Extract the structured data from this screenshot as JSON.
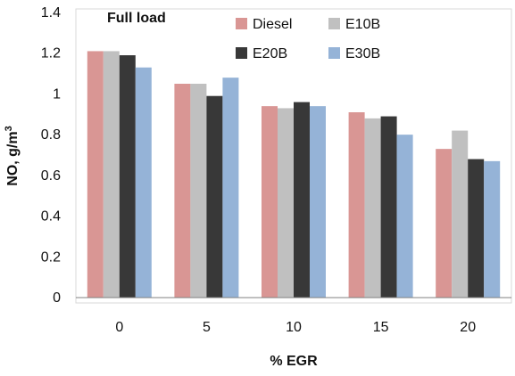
{
  "chart_data": {
    "type": "bar",
    "annotation": "Full load",
    "xlabel": "% EGR",
    "ylabel": "NO, g/m",
    "ylabel_superscript": "3",
    "categories": [
      "0",
      "5",
      "10",
      "15",
      "20"
    ],
    "ylim": [
      0,
      1.4
    ],
    "yticks": [
      "0",
      "0.2",
      "0.4",
      "0.6",
      "0.8",
      "1",
      "1.2",
      "1.4"
    ],
    "grid": false,
    "legend_position": "top-right",
    "series": [
      {
        "name": "Diesel",
        "color": "#d99694",
        "values": [
          1.21,
          1.05,
          0.94,
          0.91,
          0.73
        ]
      },
      {
        "name": "E10B",
        "color": "#c0c0c0",
        "values": [
          1.21,
          1.05,
          0.93,
          0.88,
          0.82
        ]
      },
      {
        "name": "E20B",
        "color": "#383838",
        "values": [
          1.19,
          0.99,
          0.96,
          0.89,
          0.68
        ]
      },
      {
        "name": "E30B",
        "color": "#95b3d7",
        "values": [
          1.13,
          1.08,
          0.94,
          0.8,
          0.67
        ]
      }
    ]
  }
}
